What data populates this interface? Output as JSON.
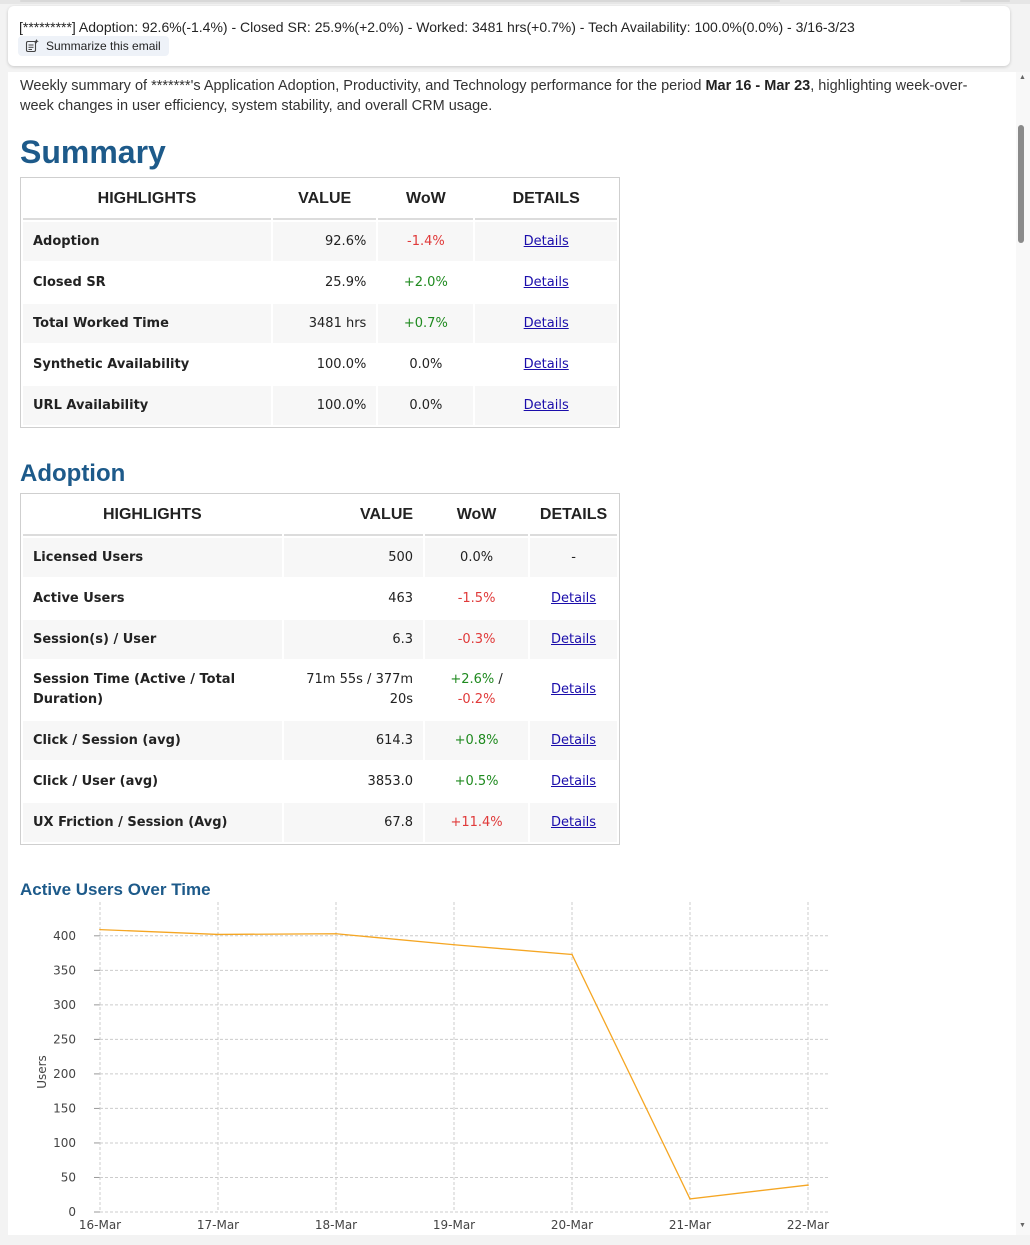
{
  "email": {
    "subject": "[*********] Adoption: 92.6%(-1.4%) - Closed SR: 25.9%(+2.0%) - Worked: 3481 hrs(+0.7%) - Tech Availability: 100.0%(0.0%) - 3/16-3/23",
    "summarize_label": "Summarize this email"
  },
  "intro": {
    "part1": "Weekly summary of *******'s Application Adoption, Productivity, and Technology performance for the period ",
    "period": "Mar 16 - Mar 23",
    "part2": ", highlighting week-over-week changes in user efficiency, system stability, and overall CRM usage."
  },
  "summary": {
    "title": "Summary",
    "headers": [
      "HIGHLIGHTS",
      "VALUE",
      "WoW",
      "DETAILS"
    ],
    "rows": [
      {
        "metric": "Adoption",
        "value": "92.6%",
        "wow": "-1.4%",
        "trend": "neg",
        "details": "Details"
      },
      {
        "metric": "Closed SR",
        "value": "25.9%",
        "wow": "+2.0%",
        "trend": "pos",
        "details": "Details"
      },
      {
        "metric": "Total Worked Time",
        "value": "3481 hrs",
        "wow": "+0.7%",
        "trend": "pos",
        "details": "Details"
      },
      {
        "metric": "Synthetic Availability",
        "value": "100.0%",
        "wow": "0.0%",
        "trend": "neu",
        "details": "Details"
      },
      {
        "metric": "URL Availability",
        "value": "100.0%",
        "wow": "0.0%",
        "trend": "neu",
        "details": "Details"
      }
    ]
  },
  "adoption": {
    "title": "Adoption",
    "headers": [
      "HIGHLIGHTS",
      "VALUE",
      "WoW",
      "DETAILS"
    ],
    "rows": [
      {
        "metric": "Licensed Users",
        "value": "500",
        "wow": "0.0%",
        "trend": "neu",
        "details": "-"
      },
      {
        "metric": "Active Users",
        "value": "463",
        "wow": "-1.5%",
        "trend": "neg",
        "details": "Details"
      },
      {
        "metric": "Session(s) / User",
        "value": "6.3",
        "wow": "-0.3%",
        "trend": "neg",
        "details": "Details"
      },
      {
        "metric": "Session Time (Active / Total Duration)",
        "value": "71m 55s / 377m 20s",
        "wow_a": "+2.6%",
        "wow_sep": " /",
        "wow_b": "-0.2%",
        "details": "Details"
      },
      {
        "metric": "Click / Session (avg)",
        "value": "614.3",
        "wow": "+0.8%",
        "trend": "pos",
        "details": "Details"
      },
      {
        "metric": "Click / User (avg)",
        "value": "3853.0",
        "wow": "+0.5%",
        "trend": "pos",
        "details": "Details"
      },
      {
        "metric": "UX Friction / Session (Avg)",
        "value": "67.8",
        "wow": "+11.4%",
        "trend": "neg",
        "details": "Details"
      }
    ]
  },
  "colors": {
    "accent": "#1d5a8a",
    "negative": "#e03a3a",
    "positive": "#1f8a1f",
    "link": "#1a0dab",
    "line": "#f5a623"
  },
  "icons": {
    "summarize": "summarize-sparkle-icon",
    "scroll_up": "scroll-up-arrow-icon",
    "scroll_down": "scroll-down-arrow-icon"
  },
  "chart_data": {
    "type": "line",
    "title": "Active Users Over Time",
    "xlabel": "",
    "ylabel": "Users",
    "categories": [
      "16-Mar",
      "17-Mar",
      "18-Mar",
      "19-Mar",
      "20-Mar",
      "21-Mar",
      "22-Mar"
    ],
    "series": [
      {
        "values": [
          409,
          402,
          403,
          387,
          373,
          19,
          39
        ]
      }
    ],
    "ylim": [
      0,
      420
    ],
    "yticks": [
      0,
      50,
      100,
      150,
      200,
      250,
      300,
      350,
      400
    ],
    "grid": true
  }
}
